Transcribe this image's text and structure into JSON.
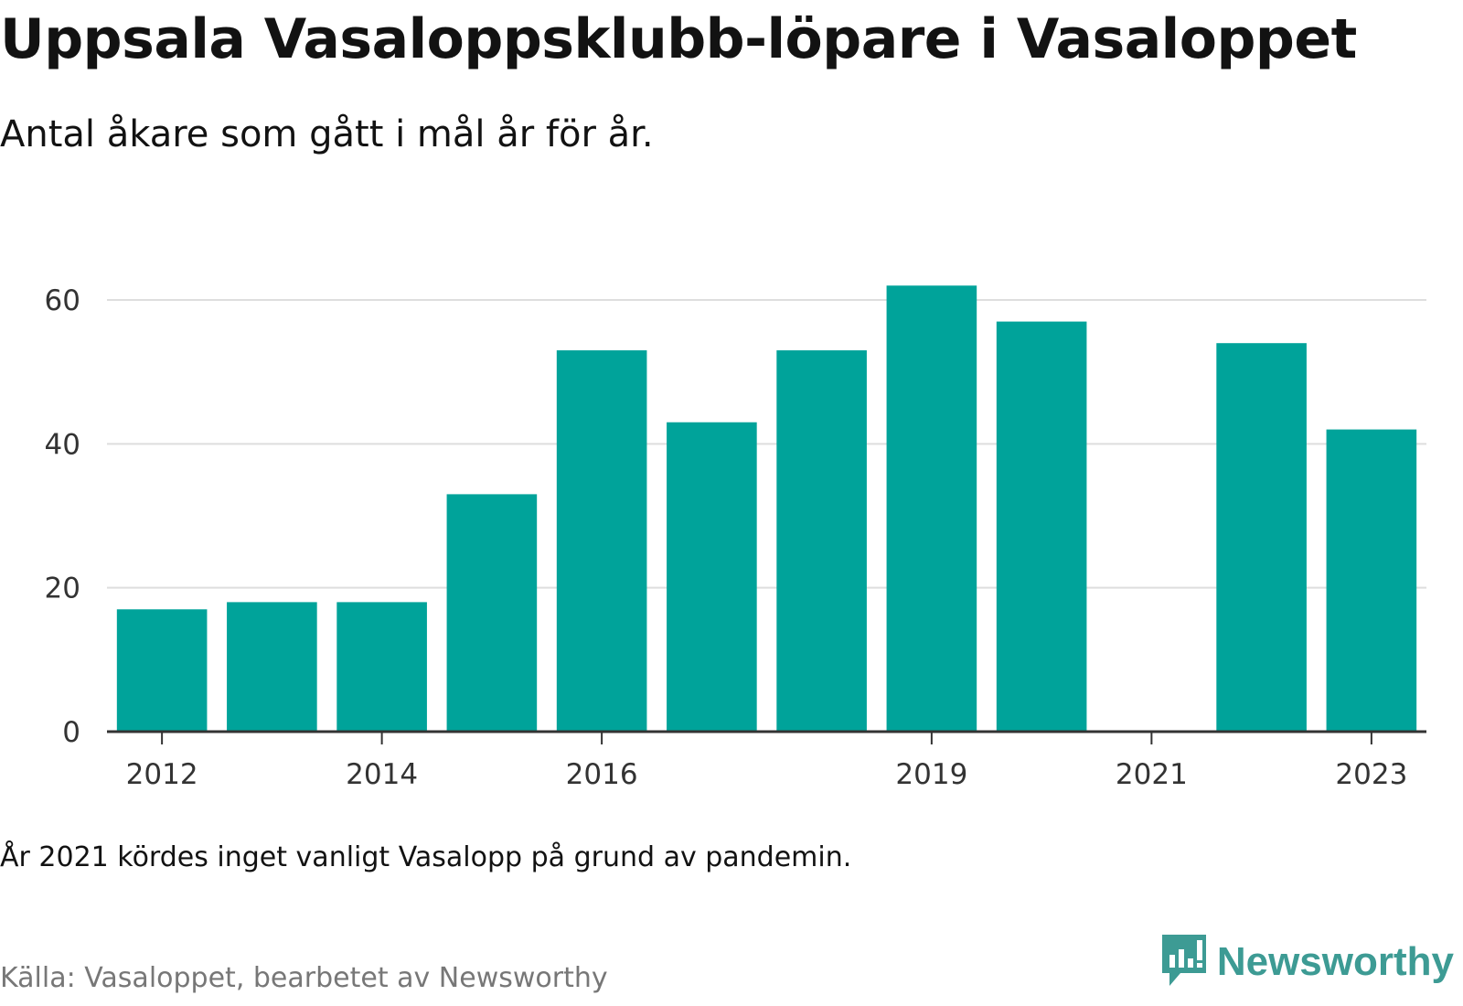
{
  "title": "Uppsala Vasaloppsklubb-löpare i Vasaloppet",
  "subtitle": "Antal åkare som gått i mål år för år.",
  "note": "År 2021 kördes inget vanligt Vasalopp på grund av pandemin.",
  "source": "Källa: Vasaloppet, bearbetet av Newsworthy",
  "brand": {
    "name": "Newsworthy",
    "color": "#3d9b94",
    "icon": "bar-chart-speech-icon"
  },
  "colors": {
    "bar": "#00a39a",
    "grid": "#dedede",
    "axis": "#333333"
  },
  "chart_data": {
    "type": "bar",
    "categories": [
      "2012",
      "2013",
      "2014",
      "2015",
      "2016",
      "2017",
      "2018",
      "2019",
      "2020",
      "2021",
      "2022",
      "2023"
    ],
    "values": [
      17,
      18,
      18,
      33,
      53,
      43,
      53,
      62,
      57,
      null,
      54,
      42
    ],
    "x_tick_labels": [
      "2012",
      "2014",
      "2016",
      "2019",
      "2021",
      "2023"
    ],
    "y_ticks": [
      0,
      20,
      40,
      60
    ],
    "ylim": [
      0,
      65
    ],
    "grid": true,
    "legend": "none"
  }
}
